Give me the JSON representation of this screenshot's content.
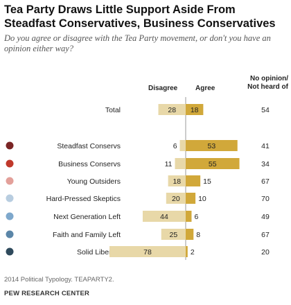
{
  "title": "Tea Party Draws Little Support Aside From Steadfast Conservatives, Business Conservatives",
  "subtitle": "Do you agree or disagree with the Tea Party movement, or don't you have an opinion either way?",
  "columns": {
    "disagree": "Disagree",
    "agree": "Agree",
    "no_opinion_line1": "No opinion/",
    "no_opinion_line2": "Not heard of"
  },
  "note": "2014 Political Typology. TEAPARTY2.",
  "source": "PEW RESEARCH CENTER",
  "colors": {
    "disagree": "#e8d8a8",
    "agree": "#d1a83a",
    "axis": "#999999"
  },
  "chart_data": {
    "type": "bar",
    "orientation": "horizontal-diverging",
    "categories": [
      "Total",
      "Steadfast Conservs",
      "Business Conservs",
      "Young Outsiders",
      "Hard-Pressed Skeptics",
      "Next Generation Left",
      "Faith and Family Left",
      "Solid Liberals"
    ],
    "series": [
      {
        "name": "Disagree",
        "values": [
          28,
          6,
          11,
          18,
          20,
          44,
          25,
          78
        ]
      },
      {
        "name": "Agree",
        "values": [
          18,
          53,
          55,
          15,
          10,
          6,
          8,
          2
        ]
      },
      {
        "name": "No opinion/ Not heard of",
        "values": [
          54,
          41,
          34,
          67,
          70,
          49,
          67,
          20
        ]
      }
    ],
    "marker_colors": [
      null,
      "#7a2525",
      "#c0392b",
      "#e3a09a",
      "#b8cde0",
      "#7ea8cc",
      "#5b86a8",
      "#2f4a5c"
    ]
  }
}
